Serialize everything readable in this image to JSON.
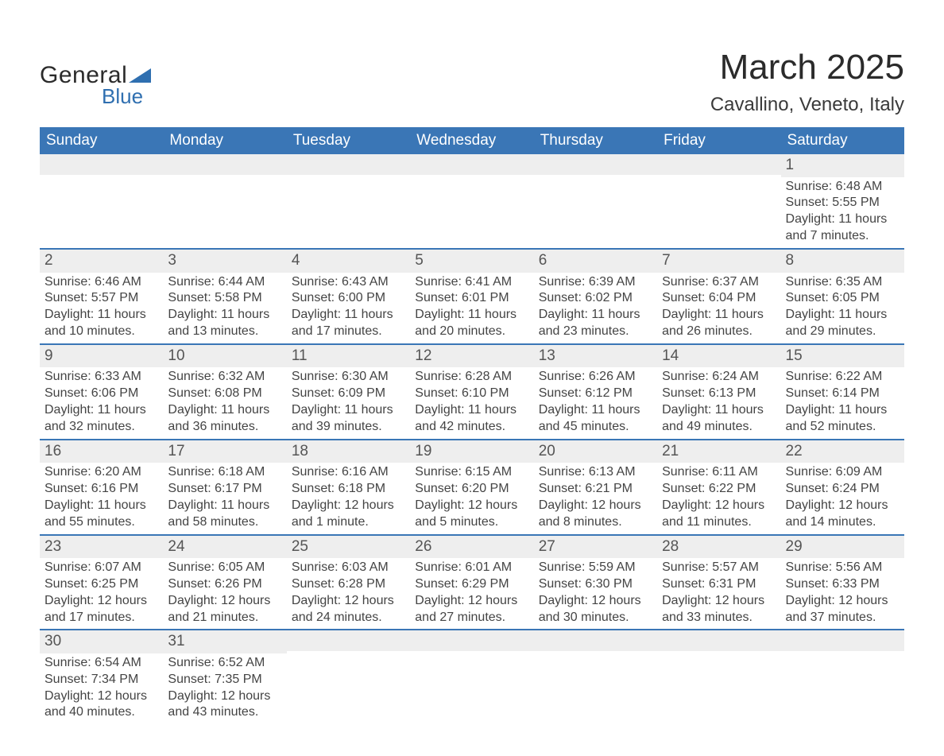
{
  "logo": {
    "text_top": "General",
    "text_bottom": "Blue",
    "triangle_color": "#2f6fb0",
    "text_color_top": "#2b2b2b",
    "text_color_bottom": "#2f6fb0"
  },
  "header": {
    "month_title": "March 2025",
    "location": "Cavallino, Veneto, Italy"
  },
  "colors": {
    "header_bg": "#3a76b6",
    "header_text": "#ffffff",
    "daynum_bg": "#eeeeee",
    "daynum_text": "#555555",
    "body_text": "#444444",
    "week_border": "#3a76b6",
    "page_bg": "#ffffff"
  },
  "typography": {
    "title_fontsize": 44,
    "location_fontsize": 24,
    "dow_fontsize": 19,
    "daynum_fontsize": 19,
    "body_fontsize": 16,
    "font_family": "Arial"
  },
  "days_of_week": [
    "Sunday",
    "Monday",
    "Tuesday",
    "Wednesday",
    "Thursday",
    "Friday",
    "Saturday"
  ],
  "weeks": [
    [
      {
        "empty": true
      },
      {
        "empty": true
      },
      {
        "empty": true
      },
      {
        "empty": true
      },
      {
        "empty": true
      },
      {
        "empty": true
      },
      {
        "num": "1",
        "sunrise": "Sunrise: 6:48 AM",
        "sunset": "Sunset: 5:55 PM",
        "daylight": "Daylight: 11 hours and 7 minutes."
      }
    ],
    [
      {
        "num": "2",
        "sunrise": "Sunrise: 6:46 AM",
        "sunset": "Sunset: 5:57 PM",
        "daylight": "Daylight: 11 hours and 10 minutes."
      },
      {
        "num": "3",
        "sunrise": "Sunrise: 6:44 AM",
        "sunset": "Sunset: 5:58 PM",
        "daylight": "Daylight: 11 hours and 13 minutes."
      },
      {
        "num": "4",
        "sunrise": "Sunrise: 6:43 AM",
        "sunset": "Sunset: 6:00 PM",
        "daylight": "Daylight: 11 hours and 17 minutes."
      },
      {
        "num": "5",
        "sunrise": "Sunrise: 6:41 AM",
        "sunset": "Sunset: 6:01 PM",
        "daylight": "Daylight: 11 hours and 20 minutes."
      },
      {
        "num": "6",
        "sunrise": "Sunrise: 6:39 AM",
        "sunset": "Sunset: 6:02 PM",
        "daylight": "Daylight: 11 hours and 23 minutes."
      },
      {
        "num": "7",
        "sunrise": "Sunrise: 6:37 AM",
        "sunset": "Sunset: 6:04 PM",
        "daylight": "Daylight: 11 hours and 26 minutes."
      },
      {
        "num": "8",
        "sunrise": "Sunrise: 6:35 AM",
        "sunset": "Sunset: 6:05 PM",
        "daylight": "Daylight: 11 hours and 29 minutes."
      }
    ],
    [
      {
        "num": "9",
        "sunrise": "Sunrise: 6:33 AM",
        "sunset": "Sunset: 6:06 PM",
        "daylight": "Daylight: 11 hours and 32 minutes."
      },
      {
        "num": "10",
        "sunrise": "Sunrise: 6:32 AM",
        "sunset": "Sunset: 6:08 PM",
        "daylight": "Daylight: 11 hours and 36 minutes."
      },
      {
        "num": "11",
        "sunrise": "Sunrise: 6:30 AM",
        "sunset": "Sunset: 6:09 PM",
        "daylight": "Daylight: 11 hours and 39 minutes."
      },
      {
        "num": "12",
        "sunrise": "Sunrise: 6:28 AM",
        "sunset": "Sunset: 6:10 PM",
        "daylight": "Daylight: 11 hours and 42 minutes."
      },
      {
        "num": "13",
        "sunrise": "Sunrise: 6:26 AM",
        "sunset": "Sunset: 6:12 PM",
        "daylight": "Daylight: 11 hours and 45 minutes."
      },
      {
        "num": "14",
        "sunrise": "Sunrise: 6:24 AM",
        "sunset": "Sunset: 6:13 PM",
        "daylight": "Daylight: 11 hours and 49 minutes."
      },
      {
        "num": "15",
        "sunrise": "Sunrise: 6:22 AM",
        "sunset": "Sunset: 6:14 PM",
        "daylight": "Daylight: 11 hours and 52 minutes."
      }
    ],
    [
      {
        "num": "16",
        "sunrise": "Sunrise: 6:20 AM",
        "sunset": "Sunset: 6:16 PM",
        "daylight": "Daylight: 11 hours and 55 minutes."
      },
      {
        "num": "17",
        "sunrise": "Sunrise: 6:18 AM",
        "sunset": "Sunset: 6:17 PM",
        "daylight": "Daylight: 11 hours and 58 minutes."
      },
      {
        "num": "18",
        "sunrise": "Sunrise: 6:16 AM",
        "sunset": "Sunset: 6:18 PM",
        "daylight": "Daylight: 12 hours and 1 minute."
      },
      {
        "num": "19",
        "sunrise": "Sunrise: 6:15 AM",
        "sunset": "Sunset: 6:20 PM",
        "daylight": "Daylight: 12 hours and 5 minutes."
      },
      {
        "num": "20",
        "sunrise": "Sunrise: 6:13 AM",
        "sunset": "Sunset: 6:21 PM",
        "daylight": "Daylight: 12 hours and 8 minutes."
      },
      {
        "num": "21",
        "sunrise": "Sunrise: 6:11 AM",
        "sunset": "Sunset: 6:22 PM",
        "daylight": "Daylight: 12 hours and 11 minutes."
      },
      {
        "num": "22",
        "sunrise": "Sunrise: 6:09 AM",
        "sunset": "Sunset: 6:24 PM",
        "daylight": "Daylight: 12 hours and 14 minutes."
      }
    ],
    [
      {
        "num": "23",
        "sunrise": "Sunrise: 6:07 AM",
        "sunset": "Sunset: 6:25 PM",
        "daylight": "Daylight: 12 hours and 17 minutes."
      },
      {
        "num": "24",
        "sunrise": "Sunrise: 6:05 AM",
        "sunset": "Sunset: 6:26 PM",
        "daylight": "Daylight: 12 hours and 21 minutes."
      },
      {
        "num": "25",
        "sunrise": "Sunrise: 6:03 AM",
        "sunset": "Sunset: 6:28 PM",
        "daylight": "Daylight: 12 hours and 24 minutes."
      },
      {
        "num": "26",
        "sunrise": "Sunrise: 6:01 AM",
        "sunset": "Sunset: 6:29 PM",
        "daylight": "Daylight: 12 hours and 27 minutes."
      },
      {
        "num": "27",
        "sunrise": "Sunrise: 5:59 AM",
        "sunset": "Sunset: 6:30 PM",
        "daylight": "Daylight: 12 hours and 30 minutes."
      },
      {
        "num": "28",
        "sunrise": "Sunrise: 5:57 AM",
        "sunset": "Sunset: 6:31 PM",
        "daylight": "Daylight: 12 hours and 33 minutes."
      },
      {
        "num": "29",
        "sunrise": "Sunrise: 5:56 AM",
        "sunset": "Sunset: 6:33 PM",
        "daylight": "Daylight: 12 hours and 37 minutes."
      }
    ],
    [
      {
        "num": "30",
        "sunrise": "Sunrise: 6:54 AM",
        "sunset": "Sunset: 7:34 PM",
        "daylight": "Daylight: 12 hours and 40 minutes."
      },
      {
        "num": "31",
        "sunrise": "Sunrise: 6:52 AM",
        "sunset": "Sunset: 7:35 PM",
        "daylight": "Daylight: 12 hours and 43 minutes."
      },
      {
        "empty": true
      },
      {
        "empty": true
      },
      {
        "empty": true
      },
      {
        "empty": true
      },
      {
        "empty": true
      }
    ]
  ]
}
